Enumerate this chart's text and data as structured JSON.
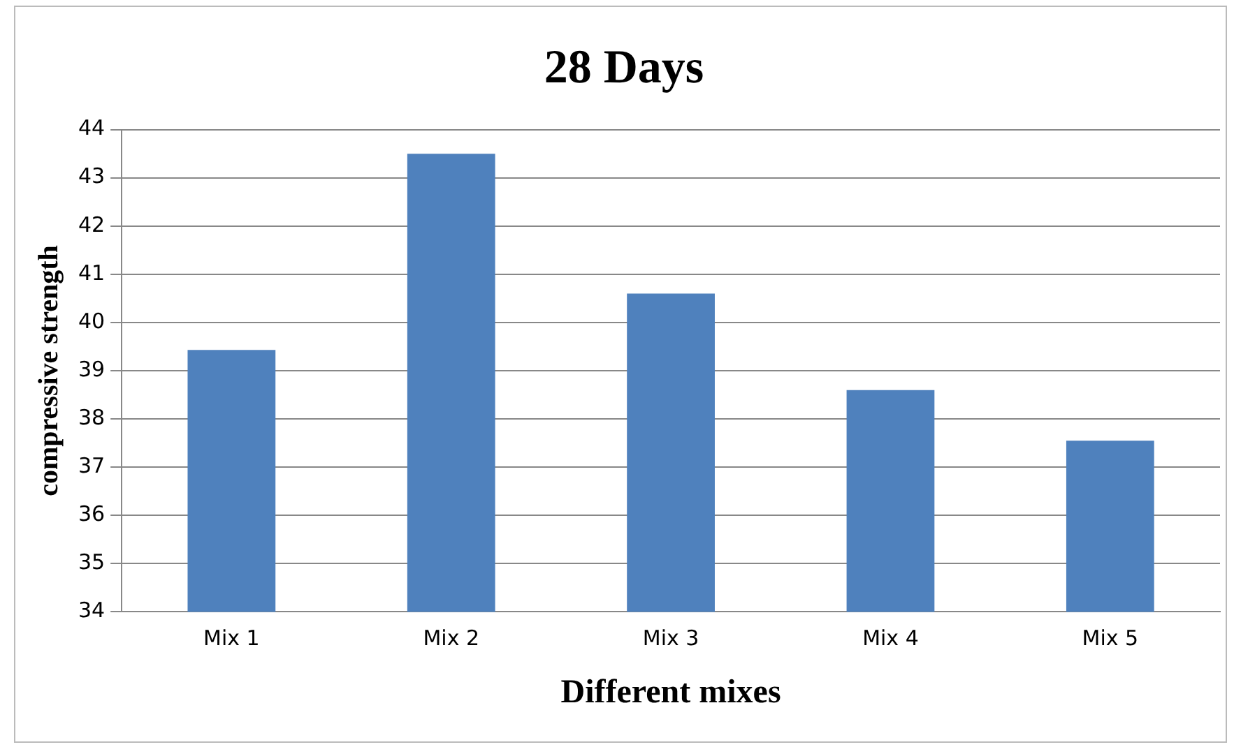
{
  "chart_data": {
    "type": "bar",
    "title": "28 Days",
    "xlabel": "Different mixes",
    "ylabel": "compressive strength",
    "categories": [
      "Mix 1",
      "Mix 2",
      "Mix 3",
      "Mix 4",
      "Mix 5"
    ],
    "values": [
      39.43,
      43.5,
      40.6,
      38.6,
      37.55
    ],
    "color": "#4f81bd",
    "ylim": [
      34,
      44
    ],
    "yticks": [
      34,
      35,
      36,
      37,
      38,
      39,
      40,
      41,
      42,
      43,
      44
    ],
    "grid": "y"
  }
}
